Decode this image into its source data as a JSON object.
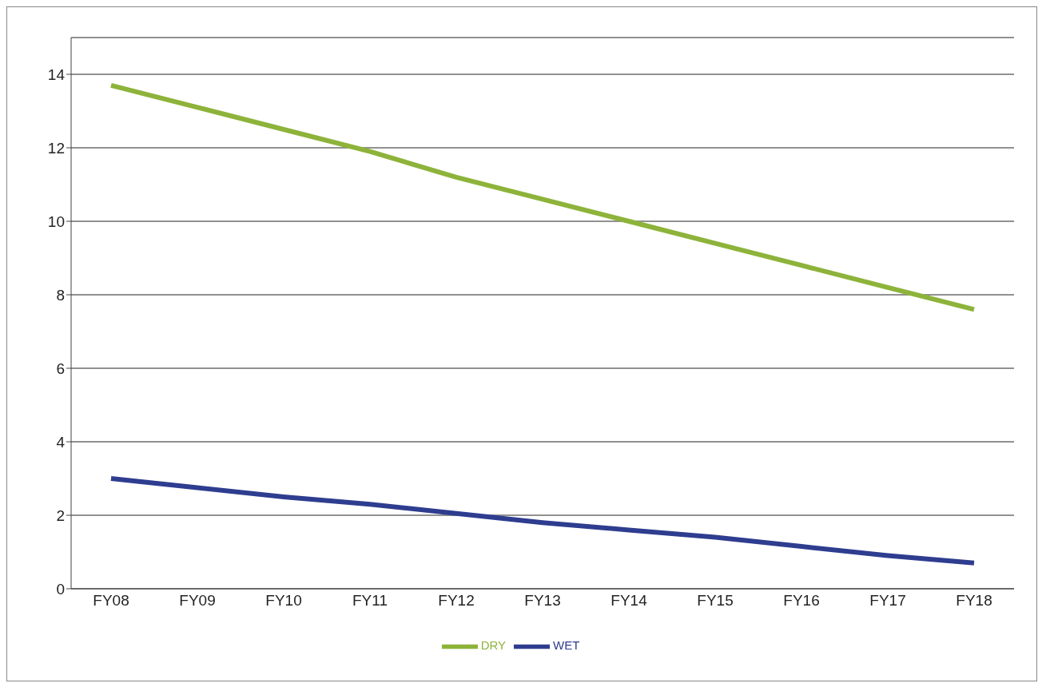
{
  "chart_data": {
    "type": "line",
    "categories": [
      "FY08",
      "FY09",
      "FY10",
      "FY11",
      "FY12",
      "FY13",
      "FY14",
      "FY15",
      "FY16",
      "FY17",
      "FY18"
    ],
    "series": [
      {
        "name": "WET",
        "color": "#2e3d8f",
        "values": [
          3.0,
          2.75,
          2.5,
          2.3,
          2.05,
          1.8,
          1.6,
          1.4,
          1.15,
          0.9,
          0.7
        ]
      },
      {
        "name": "DRY",
        "color": "#8db33a",
        "values": [
          13.7,
          13.1,
          12.5,
          11.9,
          11.2,
          10.6,
          10.0,
          9.4,
          8.8,
          8.2,
          7.6
        ]
      }
    ],
    "ylim": [
      0,
      15
    ],
    "yticks": [
      0,
      2,
      4,
      6,
      8,
      10,
      12,
      14
    ],
    "grid": "y",
    "legend": "bottom",
    "marker": "none",
    "line_style": "solid"
  }
}
